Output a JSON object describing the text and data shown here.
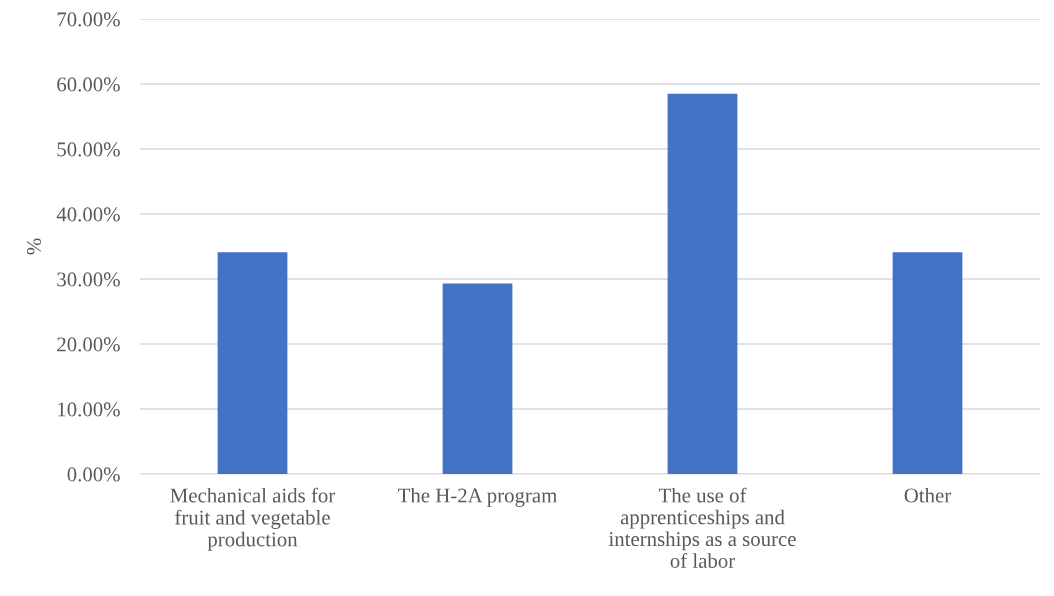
{
  "chart_data": {
    "type": "bar",
    "ylabel": "%",
    "categories": [
      "Mechanical aids for\nfruit and vegetable\nproduction",
      "The H-2A program",
      "The use of\napprenticeships and\ninternships as a source\nof labor",
      "Other"
    ],
    "values": [
      34.1,
      29.3,
      58.5,
      34.1
    ],
    "color": "#4472c4",
    "ylim": [
      0,
      70
    ],
    "yticks": [
      {
        "value": 0,
        "label": "0.00%"
      },
      {
        "value": 10,
        "label": "10.00%"
      },
      {
        "value": 20,
        "label": "20.00%"
      },
      {
        "value": 30,
        "label": "30.00%"
      },
      {
        "value": 40,
        "label": "40.00%"
      },
      {
        "value": 50,
        "label": "50.00%"
      },
      {
        "value": 60,
        "label": "60.00%"
      },
      {
        "value": 70,
        "label": "70.00%"
      }
    ],
    "grid": "y"
  }
}
